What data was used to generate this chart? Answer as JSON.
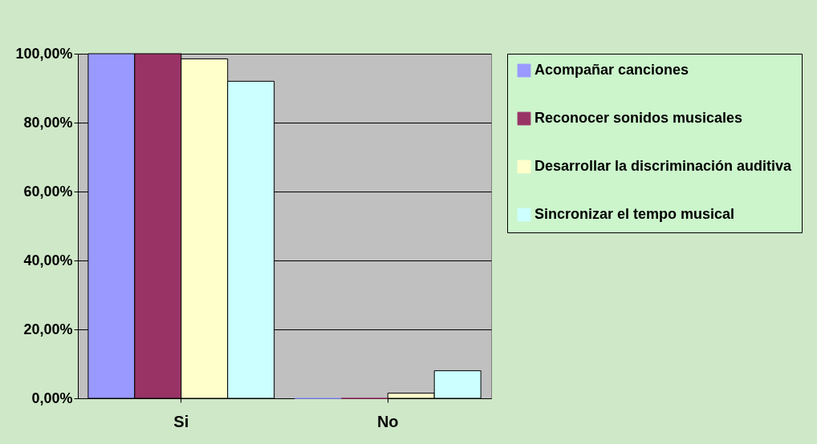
{
  "chart_data": {
    "type": "bar",
    "categories": [
      "Si",
      "No"
    ],
    "series": [
      {
        "name": "Acompañar canciones",
        "color": "#9999ff",
        "values": [
          100,
          0
        ]
      },
      {
        "name": "Reconocer sonidos musicales",
        "color": "#993366",
        "values": [
          100,
          0
        ]
      },
      {
        "name": "Desarrollar la discriminación auditiva",
        "color": "#ffffcc",
        "values": [
          98.5,
          1.5
        ]
      },
      {
        "name": "Sincronizar el tempo musical",
        "color": "#ccffff",
        "values": [
          92,
          8
        ]
      }
    ],
    "ylim": [
      0,
      100
    ],
    "yticks": [
      {
        "value": 0,
        "label": "0,00%"
      },
      {
        "value": 20,
        "label": "20,00%"
      },
      {
        "value": 40,
        "label": "40,00%"
      },
      {
        "value": 60,
        "label": "60,00%"
      },
      {
        "value": 80,
        "label": "80,00%"
      },
      {
        "value": 100,
        "label": "100,00%"
      }
    ],
    "grid": "y",
    "legend": "right"
  }
}
